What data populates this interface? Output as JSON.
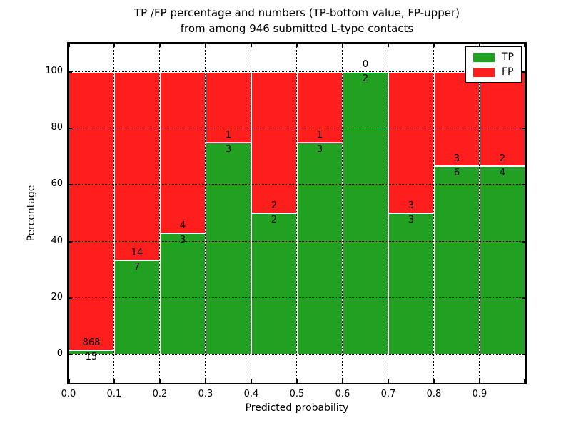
{
  "title": {
    "line1": "TP /FP percentage and numbers (TP-bottom value, FP-upper)",
    "line2": "from among 946 submitted L-type contacts"
  },
  "chart_data": {
    "type": "bar",
    "stacked": true,
    "bins": [
      "0.0-0.1",
      "0.1-0.2",
      "0.2-0.3",
      "0.3-0.4",
      "0.4-0.5",
      "0.5-0.6",
      "0.6-0.7",
      "0.7-0.8",
      "0.8-0.9",
      "0.9-1.0"
    ],
    "series": [
      {
        "name": "TP",
        "color": "#22a022",
        "counts": [
          15,
          7,
          3,
          3,
          2,
          3,
          2,
          3,
          6,
          4
        ]
      },
      {
        "name": "FP",
        "color": "#ff1e1e",
        "counts": [
          868,
          14,
          4,
          1,
          2,
          1,
          0,
          3,
          3,
          2
        ]
      }
    ],
    "tp_percent": [
      1.7,
      33.3,
      42.9,
      75.0,
      50.0,
      75.0,
      100.0,
      50.0,
      66.7,
      66.7
    ],
    "bar_total_percent": 100,
    "xlabel": "Predicted probability",
    "ylabel": "Percentage",
    "x_tick_labels": [
      "0.0",
      "0.1",
      "0.2",
      "0.3",
      "0.4",
      "0.5",
      "0.6",
      "0.7",
      "0.8",
      "0.9"
    ],
    "y_tick_values": [
      0,
      20,
      40,
      60,
      80,
      100
    ],
    "y_tick_labels": [
      "0",
      "20",
      "40",
      "60",
      "80",
      "100"
    ],
    "xlim": [
      0.0,
      1.0
    ],
    "ylim": [
      -10,
      110
    ],
    "grid": "dotted",
    "legend": {
      "position": "upper-right",
      "entries": [
        {
          "label": "TP",
          "color": "#22a022"
        },
        {
          "label": "FP",
          "color": "#ff1e1e"
        }
      ]
    }
  }
}
